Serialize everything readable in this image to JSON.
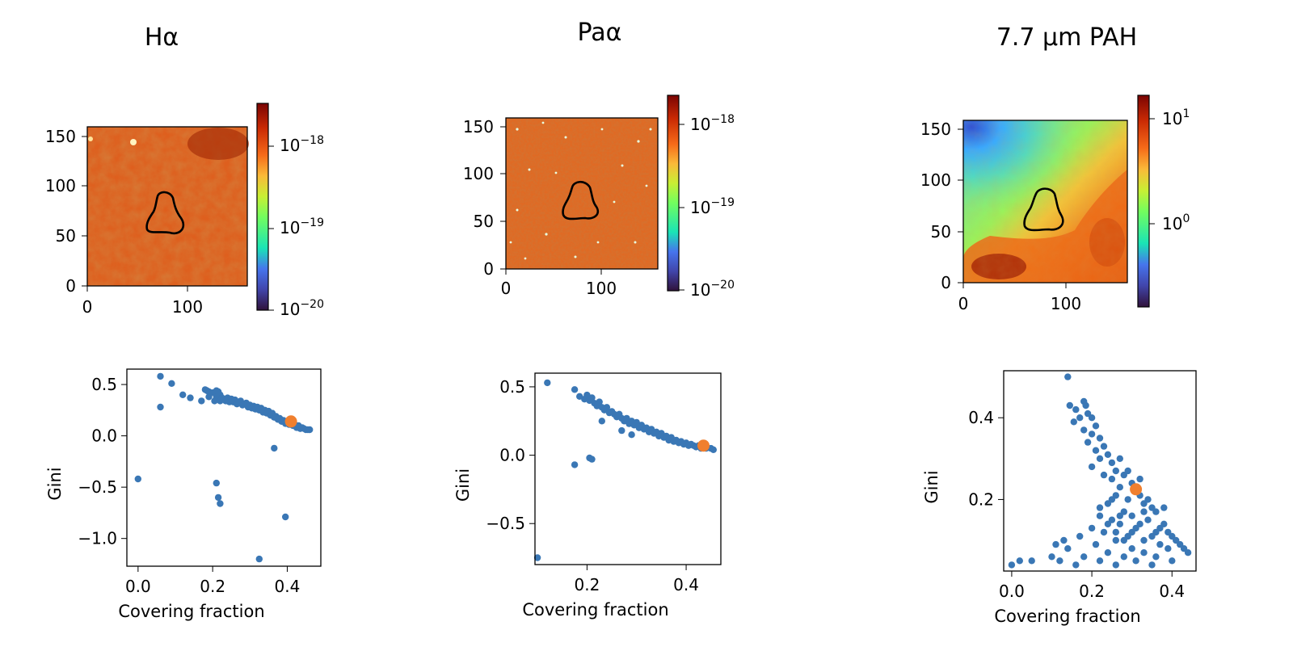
{
  "chart_data": [
    {
      "type": "heatmap",
      "title": "Hα",
      "x_ticks": [
        "0",
        "100"
      ],
      "y_ticks": [
        "0",
        "50",
        "100",
        "150"
      ],
      "xlim": [
        0,
        160
      ],
      "ylim": [
        0,
        160
      ],
      "colorbar": {
        "scale": "log",
        "colormap": "turbo",
        "range": [
          1e-20,
          3e-18
        ],
        "ticks": [
          "10−20",
          "10−19",
          "10−18"
        ]
      },
      "contour": "closed aperture contour centred near (80, 65)",
      "map_level": "high (upper end of colour scale)"
    },
    {
      "type": "heatmap",
      "title": "Paα",
      "x_ticks": [
        "0",
        "100"
      ],
      "y_ticks": [
        "0",
        "50",
        "100",
        "150"
      ],
      "xlim": [
        0,
        160
      ],
      "ylim": [
        0,
        160
      ],
      "colorbar": {
        "scale": "log",
        "colormap": "turbo",
        "range": [
          1e-20,
          2e-18
        ],
        "ticks": [
          "10−20",
          "10−19",
          "10−18"
        ]
      },
      "contour": "closed aperture contour centred near (80, 65)",
      "map_level": "high (upper end of colour scale), speckled"
    },
    {
      "type": "heatmap",
      "title": "7.7 µm PAH",
      "x_ticks": [
        "0",
        "100"
      ],
      "y_ticks": [
        "0",
        "50",
        "100",
        "150"
      ],
      "xlim": [
        0,
        160
      ],
      "ylim": [
        0,
        160
      ],
      "colorbar": {
        "scale": "log",
        "colormap": "turbo",
        "range": [
          0.2,
          15
        ],
        "ticks": [
          "100",
          "101"
        ]
      },
      "contour": "closed aperture contour centred near (80, 65)",
      "map_level": "high in lower right, low (green-blue) in upper left"
    },
    {
      "type": "scatter",
      "title": "",
      "xlabel": "Covering fraction",
      "ylabel": "Gini",
      "xlim": [
        -0.03,
        0.49
      ],
      "ylim": [
        -1.27,
        0.65
      ],
      "x_ticks": [
        0.0,
        0.2,
        0.4
      ],
      "x_tick_labels": [
        "0.0",
        "0.2",
        "0.4"
      ],
      "y_ticks": [
        0.5,
        0.0,
        -0.5,
        -1.0
      ],
      "y_tick_labels": [
        "0.5",
        "0.0",
        "−0.5",
        "−1.0"
      ],
      "series": [
        {
          "points": [
            [
              0.0,
              -0.42
            ],
            [
              0.06,
              0.58
            ],
            [
              0.06,
              0.28
            ],
            [
              0.09,
              0.51
            ],
            [
              0.12,
              0.4
            ],
            [
              0.14,
              0.37
            ],
            [
              0.17,
              0.34
            ],
            [
              0.18,
              0.45
            ],
            [
              0.185,
              0.44
            ],
            [
              0.19,
              0.43
            ],
            [
              0.19,
              0.38
            ],
            [
              0.2,
              0.42
            ],
            [
              0.205,
              0.34
            ],
            [
              0.21,
              0.38
            ],
            [
              0.21,
              0.44
            ],
            [
              0.215,
              0.43
            ],
            [
              0.22,
              0.4
            ],
            [
              0.22,
              0.34
            ],
            [
              0.225,
              0.37
            ],
            [
              0.23,
              0.36
            ],
            [
              0.235,
              0.34
            ],
            [
              0.24,
              0.37
            ],
            [
              0.245,
              0.33
            ],
            [
              0.25,
              0.36
            ],
            [
              0.255,
              0.33
            ],
            [
              0.26,
              0.35
            ],
            [
              0.265,
              0.31
            ],
            [
              0.27,
              0.33
            ],
            [
              0.275,
              0.34
            ],
            [
              0.28,
              0.3
            ],
            [
              0.285,
              0.31
            ],
            [
              0.29,
              0.32
            ],
            [
              0.295,
              0.28
            ],
            [
              0.3,
              0.3
            ],
            [
              0.305,
              0.27
            ],
            [
              0.31,
              0.29
            ],
            [
              0.315,
              0.26
            ],
            [
              0.32,
              0.28
            ],
            [
              0.325,
              0.25
            ],
            [
              0.33,
              0.27
            ],
            [
              0.335,
              0.23
            ],
            [
              0.34,
              0.25
            ],
            [
              0.345,
              0.22
            ],
            [
              0.35,
              0.24
            ],
            [
              0.355,
              0.2
            ],
            [
              0.36,
              0.22
            ],
            [
              0.365,
              0.18
            ],
            [
              0.37,
              0.19
            ],
            [
              0.375,
              0.16
            ],
            [
              0.38,
              0.17
            ],
            [
              0.385,
              0.14
            ],
            [
              0.39,
              0.15
            ],
            [
              0.395,
              0.12
            ],
            [
              0.4,
              0.13
            ],
            [
              0.405,
              0.11
            ],
            [
              0.41,
              0.12
            ],
            [
              0.415,
              0.1
            ],
            [
              0.42,
              0.11
            ],
            [
              0.425,
              0.08
            ],
            [
              0.43,
              0.1
            ],
            [
              0.435,
              0.07
            ],
            [
              0.44,
              0.08
            ],
            [
              0.445,
              0.07
            ],
            [
              0.45,
              0.06
            ],
            [
              0.455,
              0.06
            ],
            [
              0.46,
              0.06
            ],
            [
              0.365,
              -0.12
            ],
            [
              0.21,
              -0.46
            ],
            [
              0.215,
              -0.6
            ],
            [
              0.22,
              -0.66
            ],
            [
              0.395,
              -0.79
            ],
            [
              0.325,
              -1.2
            ]
          ],
          "color": "#3a77b5"
        },
        {
          "name": "",
          "points": [
            [
              0.41,
              0.14
            ]
          ],
          "color": "#f07f2e"
        }
      ]
    },
    {
      "type": "scatter",
      "title": "",
      "xlabel": "Covering fraction",
      "ylabel": "Gini",
      "xlim": [
        0.095,
        0.47
      ],
      "ylim": [
        -0.8,
        0.6
      ],
      "x_ticks": [
        0.2,
        0.4
      ],
      "x_tick_labels": [
        "0.2",
        "0.4"
      ],
      "y_ticks": [
        0.5,
        0.0,
        -0.5
      ],
      "y_tick_labels": [
        "0.5",
        "0.0",
        "−0.5"
      ],
      "series": [
        {
          "points": [
            [
              0.1,
              -0.75
            ],
            [
              0.12,
              0.53
            ],
            [
              0.175,
              0.48
            ],
            [
              0.185,
              0.43
            ],
            [
              0.195,
              0.41
            ],
            [
              0.2,
              0.44
            ],
            [
              0.205,
              0.4
            ],
            [
              0.21,
              0.42
            ],
            [
              0.215,
              0.38
            ],
            [
              0.22,
              0.36
            ],
            [
              0.225,
              0.39
            ],
            [
              0.23,
              0.35
            ],
            [
              0.235,
              0.33
            ],
            [
              0.24,
              0.35
            ],
            [
              0.245,
              0.31
            ],
            [
              0.25,
              0.32
            ],
            [
              0.255,
              0.3
            ],
            [
              0.26,
              0.28
            ],
            [
              0.265,
              0.3
            ],
            [
              0.27,
              0.27
            ],
            [
              0.275,
              0.25
            ],
            [
              0.28,
              0.27
            ],
            [
              0.285,
              0.23
            ],
            [
              0.29,
              0.25
            ],
            [
              0.295,
              0.22
            ],
            [
              0.3,
              0.24
            ],
            [
              0.305,
              0.2
            ],
            [
              0.31,
              0.22
            ],
            [
              0.315,
              0.19
            ],
            [
              0.32,
              0.2
            ],
            [
              0.325,
              0.17
            ],
            [
              0.33,
              0.19
            ],
            [
              0.335,
              0.16
            ],
            [
              0.34,
              0.17
            ],
            [
              0.345,
              0.14
            ],
            [
              0.35,
              0.16
            ],
            [
              0.355,
              0.13
            ],
            [
              0.36,
              0.14
            ],
            [
              0.365,
              0.11
            ],
            [
              0.37,
              0.13
            ],
            [
              0.375,
              0.1
            ],
            [
              0.38,
              0.11
            ],
            [
              0.385,
              0.09
            ],
            [
              0.39,
              0.1
            ],
            [
              0.395,
              0.08
            ],
            [
              0.4,
              0.09
            ],
            [
              0.405,
              0.07
            ],
            [
              0.41,
              0.08
            ],
            [
              0.415,
              0.07
            ],
            [
              0.42,
              0.06
            ],
            [
              0.425,
              0.07
            ],
            [
              0.43,
              0.05
            ],
            [
              0.435,
              0.06
            ],
            [
              0.44,
              0.05
            ],
            [
              0.45,
              0.05
            ],
            [
              0.455,
              0.04
            ],
            [
              0.29,
              0.15
            ],
            [
              0.27,
              0.18
            ],
            [
              0.23,
              0.25
            ],
            [
              0.175,
              -0.07
            ],
            [
              0.205,
              -0.02
            ],
            [
              0.21,
              -0.03
            ]
          ],
          "color": "#3a77b5"
        },
        {
          "name": "",
          "points": [
            [
              0.435,
              0.07
            ]
          ],
          "color": "#f07f2e"
        }
      ]
    },
    {
      "type": "scatter",
      "title": "",
      "xlabel": "Covering fraction",
      "ylabel": "Gini",
      "xlim": [
        -0.02,
        0.46
      ],
      "ylim": [
        0.025,
        0.515
      ],
      "x_ticks": [
        0.0,
        0.2,
        0.4
      ],
      "x_tick_labels": [
        "0.0",
        "0.2",
        "0.4"
      ],
      "y_ticks": [
        0.4,
        0.2
      ],
      "y_tick_labels": [
        "0.4",
        "0.2"
      ],
      "series": [
        {
          "points": [
            [
              0.14,
              0.5
            ],
            [
              0.145,
              0.43
            ],
            [
              0.18,
              0.44
            ],
            [
              0.185,
              0.43
            ],
            [
              0.16,
              0.42
            ],
            [
              0.19,
              0.41
            ],
            [
              0.17,
              0.4
            ],
            [
              0.2,
              0.4
            ],
            [
              0.155,
              0.39
            ],
            [
              0.21,
              0.38
            ],
            [
              0.18,
              0.37
            ],
            [
              0.2,
              0.36
            ],
            [
              0.22,
              0.35
            ],
            [
              0.19,
              0.34
            ],
            [
              0.23,
              0.33
            ],
            [
              0.21,
              0.32
            ],
            [
              0.24,
              0.31
            ],
            [
              0.22,
              0.3
            ],
            [
              0.25,
              0.29
            ],
            [
              0.2,
              0.28
            ],
            [
              0.26,
              0.27
            ],
            [
              0.23,
              0.26
            ],
            [
              0.28,
              0.26
            ],
            [
              0.25,
              0.25
            ],
            [
              0.3,
              0.24
            ],
            [
              0.27,
              0.23
            ],
            [
              0.31,
              0.22
            ],
            [
              0.26,
              0.21
            ],
            [
              0.32,
              0.21
            ],
            [
              0.29,
              0.2
            ],
            [
              0.33,
              0.19
            ],
            [
              0.24,
              0.19
            ],
            [
              0.35,
              0.18
            ],
            [
              0.28,
              0.17
            ],
            [
              0.36,
              0.17
            ],
            [
              0.22,
              0.16
            ],
            [
              0.3,
              0.16
            ],
            [
              0.34,
              0.15
            ],
            [
              0.25,
              0.15
            ],
            [
              0.38,
              0.14
            ],
            [
              0.27,
              0.14
            ],
            [
              0.2,
              0.13
            ],
            [
              0.31,
              0.13
            ],
            [
              0.36,
              0.12
            ],
            [
              0.23,
              0.12
            ],
            [
              0.4,
              0.11
            ],
            [
              0.29,
              0.11
            ],
            [
              0.17,
              0.11
            ],
            [
              0.33,
              0.1
            ],
            [
              0.26,
              0.1
            ],
            [
              0.42,
              0.09
            ],
            [
              0.37,
              0.09
            ],
            [
              0.21,
              0.09
            ],
            [
              0.3,
              0.08
            ],
            [
              0.14,
              0.08
            ],
            [
              0.39,
              0.08
            ],
            [
              0.24,
              0.07
            ],
            [
              0.33,
              0.07
            ],
            [
              0.44,
              0.07
            ],
            [
              0.18,
              0.06
            ],
            [
              0.28,
              0.06
            ],
            [
              0.36,
              0.06
            ],
            [
              0.12,
              0.05
            ],
            [
              0.22,
              0.05
            ],
            [
              0.31,
              0.05
            ],
            [
              0.4,
              0.05
            ],
            [
              0.16,
              0.04
            ],
            [
              0.26,
              0.04
            ],
            [
              0.35,
              0.04
            ],
            [
              0.0,
              0.04
            ],
            [
              0.02,
              0.05
            ],
            [
              0.05,
              0.05
            ],
            [
              0.1,
              0.06
            ],
            [
              0.11,
              0.09
            ],
            [
              0.13,
              0.1
            ],
            [
              0.34,
              0.2
            ],
            [
              0.32,
              0.25
            ],
            [
              0.29,
              0.27
            ],
            [
              0.27,
              0.3
            ],
            [
              0.38,
              0.18
            ],
            [
              0.41,
              0.1
            ],
            [
              0.43,
              0.08
            ],
            [
              0.37,
              0.13
            ],
            [
              0.35,
              0.11
            ],
            [
              0.32,
              0.14
            ],
            [
              0.3,
              0.12
            ],
            [
              0.28,
              0.1
            ],
            [
              0.26,
              0.12
            ],
            [
              0.24,
              0.14
            ],
            [
              0.22,
              0.18
            ],
            [
              0.25,
              0.2
            ],
            [
              0.27,
              0.16
            ],
            [
              0.33,
              0.17
            ],
            [
              0.39,
              0.12
            ]
          ],
          "color": "#3a77b5"
        },
        {
          "name": "",
          "points": [
            [
              0.31,
              0.225
            ]
          ],
          "color": "#f07f2e"
        }
      ]
    }
  ]
}
